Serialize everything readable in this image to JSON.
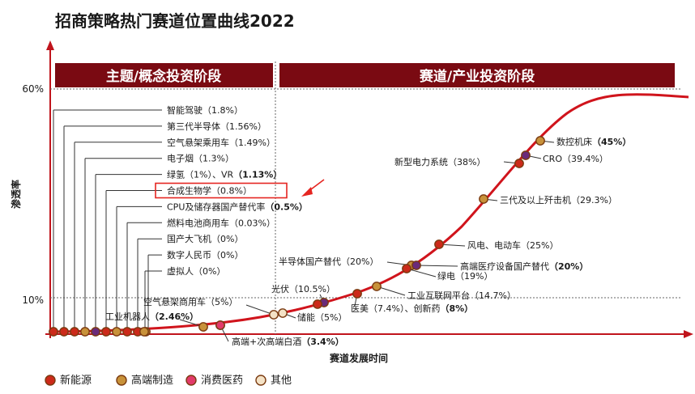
{
  "title": "招商策略热门赛道位置曲线2022",
  "chart_data": {
    "type": "line",
    "title": "招商策略热门赛道位置曲线2022",
    "ylabel": "渗透率",
    "xlabel": "赛道发展时间",
    "y_ticks": [
      "60%",
      "10%"
    ],
    "phases": [
      "主题/概念投资阶段",
      "赛道/产业投资阶段"
    ],
    "legend": [
      {
        "name": "新能源",
        "color": "#cc2a1a"
      },
      {
        "name": "高端制造",
        "color": "#c8923a"
      },
      {
        "name": "消费医药",
        "color": "#e23a6a"
      },
      {
        "name": "其他",
        "color": "#f4e2c6"
      }
    ],
    "theme_items": [
      {
        "name": "智能驾驶",
        "value": "（1.8%）",
        "bold": false
      },
      {
        "name": "第三代半导体",
        "value": "（1.56%）",
        "bold": false
      },
      {
        "name": "空气悬架乘用车",
        "value": "（1.49%）",
        "bold": false
      },
      {
        "name": "电子烟",
        "value": "（1.3%）",
        "bold": false
      },
      {
        "name": "绿氢（1%）、VR",
        "value": "（1.13%）",
        "bold": true
      },
      {
        "name": "合成生物学",
        "value": "（0.8%）",
        "bold": false,
        "highlight": true
      },
      {
        "name": "CPU及储存器国产替代率",
        "value": "（0.5%）",
        "bold": true
      },
      {
        "name": "燃料电池商用车",
        "value": "（0.03%）",
        "bold": false
      },
      {
        "name": "国产大飞机",
        "value": "（0%）",
        "bold": false
      },
      {
        "name": "数字人民币",
        "value": "（0%）",
        "bold": false
      },
      {
        "name": "虚拟人",
        "value": "（0%）",
        "bold": false
      }
    ],
    "theme_dot_colors": [
      "#cc2a1a",
      "#cc2a1a",
      "#cc2a1a",
      "#c8923a",
      "#6a2a7a",
      "#cc2a1a",
      "#c8923a",
      "#cc2a1a",
      "#cc2a1a",
      "#c8923a",
      "#c8923a"
    ],
    "curve_points": [
      {
        "name": "工业机器人",
        "value": "（2.46%）",
        "color": "#c8923a"
      },
      {
        "name": "",
        "value": "",
        "color": "#6a2a7a"
      },
      {
        "name": "空气悬架商用车",
        "value": "（5%）",
        "color": "#f4e2c6"
      },
      {
        "name": "储能",
        "value": "（5%）",
        "color": "#f4e2c6"
      },
      {
        "name": "高端+次高端白酒",
        "value": "（3.4%）",
        "color": "#e23a6a"
      },
      {
        "name": "光伏",
        "value": "（10.5%）",
        "color": "#6a2a7a"
      },
      {
        "name": "",
        "value": "",
        "color": "#cc2a1a"
      },
      {
        "name": "医美（7.4%）、创新药",
        "value": "（8%）",
        "color": "#cc2a1a"
      },
      {
        "name": "工业互联网平台",
        "value": "（14.7%）",
        "color": "#c8923a"
      },
      {
        "name": "半导体国产替代",
        "value": "（20%）",
        "color": "#c8923a"
      },
      {
        "name": "高端医疗设备国产替代",
        "value": "（20%）",
        "color": "#6a2a7a"
      },
      {
        "name": "绿电",
        "value": "（19%）",
        "color": "#cc2a1a"
      },
      {
        "name": "风电、电动车",
        "value": "（25%）",
        "color": "#cc2a1a"
      },
      {
        "name": "三代及以上歼击机",
        "value": "（29.3%）",
        "color": "#c8923a"
      },
      {
        "name": "新型电力系统",
        "value": "（38%）",
        "color": "#cc2a1a"
      },
      {
        "name": "CRO",
        "value": "（39.4%）",
        "color": "#6a2a7a"
      },
      {
        "name": "数控机床",
        "value": "（45%）",
        "color": "#c8923a"
      }
    ]
  }
}
